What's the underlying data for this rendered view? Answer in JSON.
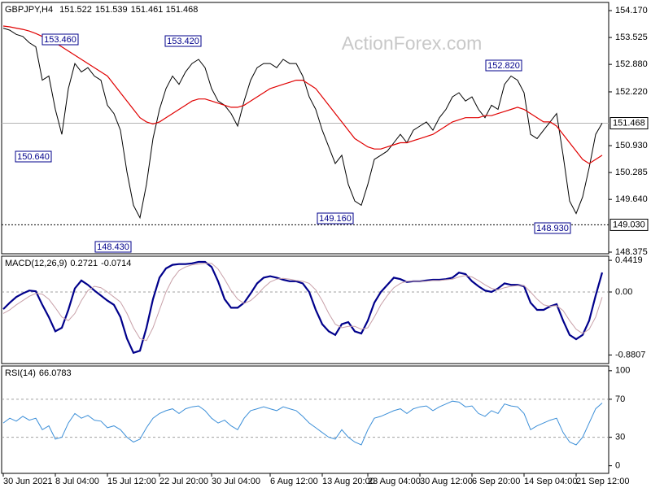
{
  "chart_data": [
    {
      "type": "line",
      "title": "GBPJPY,H4",
      "readout": [
        151.522,
        151.539,
        151.461,
        151.468
      ],
      "watermark": "ActionForex.com",
      "x": [
        "30 Jun 2021",
        null,
        null,
        null,
        null,
        null,
        null,
        null,
        "8 Jul 04:00",
        null,
        null,
        null,
        null,
        null,
        null,
        null,
        "15 Jul 12:00",
        null,
        null,
        null,
        null,
        null,
        null,
        null,
        "22 Jul 20:00",
        null,
        null,
        null,
        null,
        null,
        null,
        null,
        "30 Jul 04:00",
        null,
        null,
        null,
        null,
        null,
        null,
        null,
        null,
        "6 Aug 12:00",
        null,
        null,
        null,
        null,
        null,
        null,
        null,
        "13 Aug 20:00",
        null,
        null,
        null,
        null,
        null,
        null,
        "23 Aug 04:00",
        null,
        null,
        null,
        null,
        null,
        null,
        null,
        "30 Aug 12:00",
        null,
        null,
        null,
        null,
        null,
        null,
        null,
        "6 Sep 20:00",
        null,
        null,
        null,
        null,
        null,
        null,
        null,
        "14 Sep 04:00",
        null,
        null,
        null,
        null,
        null,
        null,
        null,
        "21 Sep 12:00",
        null,
        null,
        null,
        null
      ],
      "series": [
        {
          "color": "#000000",
          "values": [
            153.75,
            153.7,
            153.6,
            153.55,
            153.4,
            153.3,
            152.5,
            152.6,
            151.8,
            151.2,
            152.3,
            152.9,
            152.7,
            152.8,
            152.6,
            152.5,
            151.9,
            151.7,
            151.3,
            150.3,
            149.5,
            149.2,
            150.0,
            151.1,
            151.8,
            152.3,
            152.6,
            152.4,
            152.7,
            152.9,
            153.0,
            152.8,
            152.3,
            152.0,
            151.9,
            151.7,
            151.4,
            152.0,
            152.5,
            152.8,
            152.9,
            152.9,
            152.8,
            153.0,
            152.9,
            152.9,
            152.6,
            152.1,
            151.8,
            151.3,
            150.9,
            150.5,
            150.7,
            150.0,
            149.6,
            149.5,
            150.0,
            150.6,
            150.7,
            150.8,
            151.0,
            151.2,
            151.0,
            151.3,
            151.4,
            151.5,
            151.3,
            151.6,
            151.8,
            152.1,
            152.2,
            152.0,
            152.1,
            151.8,
            151.6,
            151.9,
            151.8,
            152.4,
            152.6,
            152.5,
            152.2,
            151.2,
            151.1,
            151.3,
            151.5,
            151.7,
            150.7,
            149.6,
            149.3,
            149.7,
            150.4,
            151.2,
            151.47
          ]
        },
        {
          "color": "#e00000",
          "values": [
            153.8,
            153.78,
            153.75,
            153.72,
            153.68,
            153.62,
            153.55,
            153.48,
            153.4,
            153.3,
            153.2,
            153.1,
            153.0,
            152.9,
            152.8,
            152.7,
            152.6,
            152.4,
            152.2,
            152.0,
            151.8,
            151.6,
            151.5,
            151.45,
            151.5,
            151.6,
            151.7,
            151.8,
            151.9,
            152.0,
            152.05,
            152.05,
            152.0,
            151.95,
            151.9,
            151.85,
            151.85,
            151.9,
            152.0,
            152.1,
            152.2,
            152.3,
            152.35,
            152.4,
            152.45,
            152.5,
            152.5,
            152.4,
            152.3,
            152.1,
            151.9,
            151.7,
            151.5,
            151.3,
            151.1,
            151.0,
            150.9,
            150.85,
            150.85,
            150.9,
            150.95,
            151.0,
            151.0,
            151.05,
            151.1,
            151.15,
            151.2,
            151.3,
            151.4,
            151.5,
            151.55,
            151.6,
            151.6,
            151.6,
            151.65,
            151.65,
            151.7,
            151.75,
            151.8,
            151.85,
            151.8,
            151.7,
            151.6,
            151.5,
            151.5,
            151.4,
            151.2,
            151.0,
            150.8,
            150.6,
            150.5,
            150.6,
            150.7
          ]
        }
      ],
      "ylim": [
        148.336,
        154.366
      ],
      "yticks": [
        {
          "value": 154.17,
          "label": "154.170"
        },
        153.525,
        {
          "value": 152.88,
          "label": "152.880"
        },
        {
          "value": 152.22,
          "label": "152.220"
        },
        {
          "value": 150.93,
          "label": "150.930"
        },
        150.285,
        {
          "value": 149.64,
          "label": "149.640"
        },
        148.375
      ],
      "last_price": 151.468,
      "level": {
        "value": 149.03,
        "label": "149.030"
      },
      "annotations": [
        {
          "value": 153.46,
          "label": "153.460"
        },
        {
          "value": 153.42,
          "label": "153.420"
        },
        {
          "value": 152.82,
          "label": "152.820"
        },
        {
          "value": 150.64,
          "label": "150.640"
        },
        {
          "value": 148.43,
          "label": "148.430"
        },
        {
          "value": 149.16,
          "label": "149.160"
        },
        {
          "value": 148.93,
          "label": "148.930"
        }
      ]
    },
    {
      "type": "line",
      "title": "MACD(12,26,9)",
      "readout": [
        0.2721,
        -0.0714
      ],
      "series": [
        {
          "color": "#00008b",
          "values": [
            -0.24,
            -0.15,
            -0.07,
            -0.02,
            0.02,
            0.01,
            -0.18,
            -0.35,
            -0.55,
            -0.5,
            -0.25,
            0.05,
            0.16,
            0.1,
            0.02,
            -0.05,
            -0.12,
            -0.18,
            -0.35,
            -0.65,
            -0.85,
            -0.82,
            -0.5,
            -0.1,
            0.2,
            0.33,
            0.38,
            0.39,
            0.39,
            0.4,
            0.42,
            0.42,
            0.35,
            0.15,
            -0.1,
            -0.22,
            -0.22,
            -0.15,
            -0.02,
            0.12,
            0.2,
            0.22,
            0.2,
            0.17,
            0.15,
            0.15,
            0.12,
            0.0,
            -0.25,
            -0.45,
            -0.55,
            -0.6,
            -0.45,
            -0.42,
            -0.55,
            -0.58,
            -0.4,
            -0.15,
            0.0,
            0.1,
            0.2,
            0.18,
            0.14,
            0.15,
            0.15,
            0.16,
            0.17,
            0.17,
            0.18,
            0.2,
            0.27,
            0.25,
            0.15,
            0.08,
            0.02,
            0.0,
            0.05,
            0.12,
            0.1,
            0.1,
            0.08,
            -0.15,
            -0.25,
            -0.25,
            -0.2,
            -0.17,
            -0.4,
            -0.6,
            -0.66,
            -0.6,
            -0.4,
            -0.05,
            0.2721
          ]
        },
        {
          "color": "#c8a0a8",
          "values": [
            -0.3,
            -0.25,
            -0.18,
            -0.12,
            -0.06,
            -0.02,
            -0.03,
            -0.1,
            -0.22,
            -0.35,
            -0.4,
            -0.3,
            -0.12,
            0.02,
            0.08,
            0.06,
            0.0,
            -0.07,
            -0.14,
            -0.3,
            -0.5,
            -0.65,
            -0.68,
            -0.5,
            -0.25,
            0.0,
            0.18,
            0.3,
            0.35,
            0.38,
            0.39,
            0.4,
            0.4,
            0.32,
            0.18,
            0.02,
            -0.1,
            -0.16,
            -0.12,
            -0.04,
            0.06,
            0.14,
            0.18,
            0.19,
            0.18,
            0.16,
            0.15,
            0.12,
            0.03,
            -0.12,
            -0.3,
            -0.45,
            -0.5,
            -0.48,
            -0.48,
            -0.52,
            -0.5,
            -0.35,
            -0.18,
            -0.05,
            0.06,
            0.12,
            0.15,
            0.15,
            0.15,
            0.15,
            0.16,
            0.16,
            0.17,
            0.18,
            0.21,
            0.23,
            0.21,
            0.16,
            0.1,
            0.05,
            0.03,
            0.06,
            0.08,
            0.09,
            0.09,
            0.0,
            -0.1,
            -0.18,
            -0.2,
            -0.19,
            -0.26,
            -0.4,
            -0.52,
            -0.58,
            -0.52,
            -0.35,
            -0.0714
          ]
        }
      ],
      "ylim": [
        -1.0,
        0.5
      ],
      "yticks": [
        0.4419,
        {
          "value": 0,
          "label": "0.00"
        },
        -0.8807
      ],
      "levels": [
        0
      ]
    },
    {
      "type": "line",
      "title": "RSI(14)",
      "readout": [
        66.0783
      ],
      "series": [
        {
          "color": "#3c8fd8",
          "values": [
            45,
            50,
            47,
            52,
            48,
            50,
            38,
            42,
            28,
            30,
            45,
            55,
            50,
            53,
            48,
            47,
            40,
            42,
            38,
            30,
            25,
            28,
            40,
            50,
            55,
            58,
            60,
            55,
            60,
            62,
            63,
            58,
            50,
            45,
            48,
            42,
            38,
            50,
            58,
            60,
            62,
            60,
            58,
            62,
            60,
            58,
            52,
            45,
            40,
            35,
            30,
            28,
            38,
            30,
            25,
            22,
            38,
            50,
            52,
            55,
            58,
            60,
            55,
            60,
            62,
            63,
            58,
            62,
            65,
            68,
            67,
            62,
            63,
            55,
            52,
            58,
            55,
            65,
            63,
            62,
            55,
            38,
            42,
            45,
            48,
            50,
            35,
            25,
            22,
            30,
            45,
            60,
            66.0783
          ]
        }
      ],
      "ylim": [
        -8,
        105
      ],
      "yticks": [
        100,
        70,
        30,
        0
      ],
      "levels": [
        70,
        30
      ]
    }
  ]
}
